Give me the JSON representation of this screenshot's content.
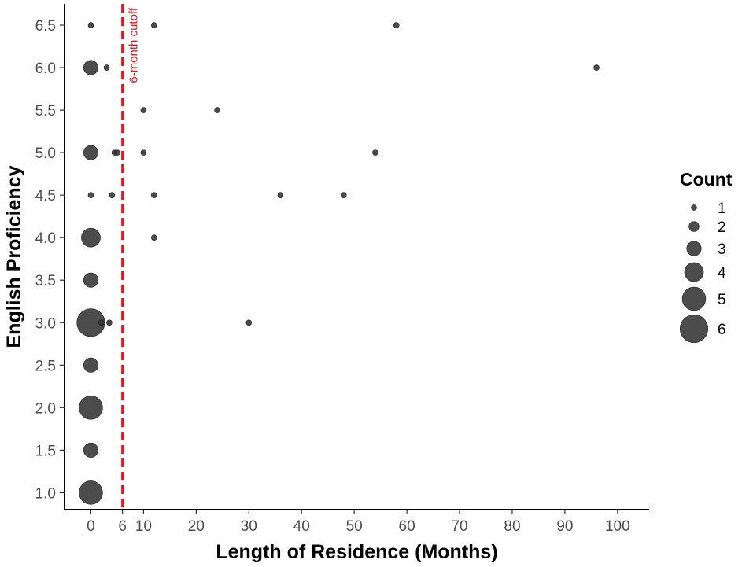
{
  "chart_data": {
    "type": "scatter",
    "xlabel": "Length of Residence (Months)",
    "ylabel": "English Proficiency",
    "xlim": [
      -5,
      106
    ],
    "ylim": [
      0.8,
      6.75
    ],
    "x_ticks": [
      0,
      6,
      10,
      20,
      30,
      40,
      50,
      60,
      70,
      80,
      90,
      100
    ],
    "y_ticks": [
      1.0,
      1.5,
      2.0,
      2.5,
      3.0,
      3.5,
      4.0,
      4.5,
      5.0,
      5.5,
      6.0,
      6.5
    ],
    "y_tick_labels": [
      "1.0",
      "1.5",
      "2.0",
      "2.5",
      "3.0",
      "3.5",
      "4.0",
      "4.5",
      "5.0",
      "5.5",
      "6.0",
      "6.5"
    ],
    "grid": false,
    "point_color": "#333333",
    "points": [
      {
        "x": 0,
        "y": 6.5,
        "count": 1
      },
      {
        "x": 12,
        "y": 6.5,
        "count": 1
      },
      {
        "x": 58,
        "y": 6.5,
        "count": 1
      },
      {
        "x": 0,
        "y": 6.0,
        "count": 3
      },
      {
        "x": 3,
        "y": 6.0,
        "count": 1
      },
      {
        "x": 96,
        "y": 6.0,
        "count": 1
      },
      {
        "x": 10,
        "y": 5.5,
        "count": 1
      },
      {
        "x": 24,
        "y": 5.5,
        "count": 1
      },
      {
        "x": 0,
        "y": 5.0,
        "count": 3
      },
      {
        "x": 4.5,
        "y": 5.0,
        "count": 1
      },
      {
        "x": 5,
        "y": 5.0,
        "count": 1
      },
      {
        "x": 10,
        "y": 5.0,
        "count": 1
      },
      {
        "x": 54,
        "y": 5.0,
        "count": 1
      },
      {
        "x": 0,
        "y": 4.5,
        "count": 1
      },
      {
        "x": 4,
        "y": 4.5,
        "count": 1
      },
      {
        "x": 12,
        "y": 4.5,
        "count": 1
      },
      {
        "x": 36,
        "y": 4.5,
        "count": 1
      },
      {
        "x": 48,
        "y": 4.5,
        "count": 1
      },
      {
        "x": 0,
        "y": 4.0,
        "count": 4
      },
      {
        "x": 12,
        "y": 4.0,
        "count": 1
      },
      {
        "x": 0,
        "y": 3.5,
        "count": 3
      },
      {
        "x": 0,
        "y": 3.0,
        "count": 6
      },
      {
        "x": 2,
        "y": 3.0,
        "count": 1
      },
      {
        "x": 3.5,
        "y": 3.0,
        "count": 1
      },
      {
        "x": 30,
        "y": 3.0,
        "count": 1
      },
      {
        "x": 0,
        "y": 2.5,
        "count": 3
      },
      {
        "x": 0,
        "y": 2.0,
        "count": 5
      },
      {
        "x": 0,
        "y": 1.5,
        "count": 3
      },
      {
        "x": 0,
        "y": 1.0,
        "count": 5
      }
    ],
    "reference_line": {
      "x": 6,
      "label": "6-month cutoff",
      "color": "#e8141c",
      "style": "dashed"
    },
    "legend": {
      "title": "Count",
      "placement": "right",
      "entries": [
        {
          "label": "1",
          "value": 1
        },
        {
          "label": "2",
          "value": 2
        },
        {
          "label": "3",
          "value": 3
        },
        {
          "label": "4",
          "value": 4
        },
        {
          "label": "5",
          "value": 5
        },
        {
          "label": "6",
          "value": 6
        }
      ]
    }
  }
}
